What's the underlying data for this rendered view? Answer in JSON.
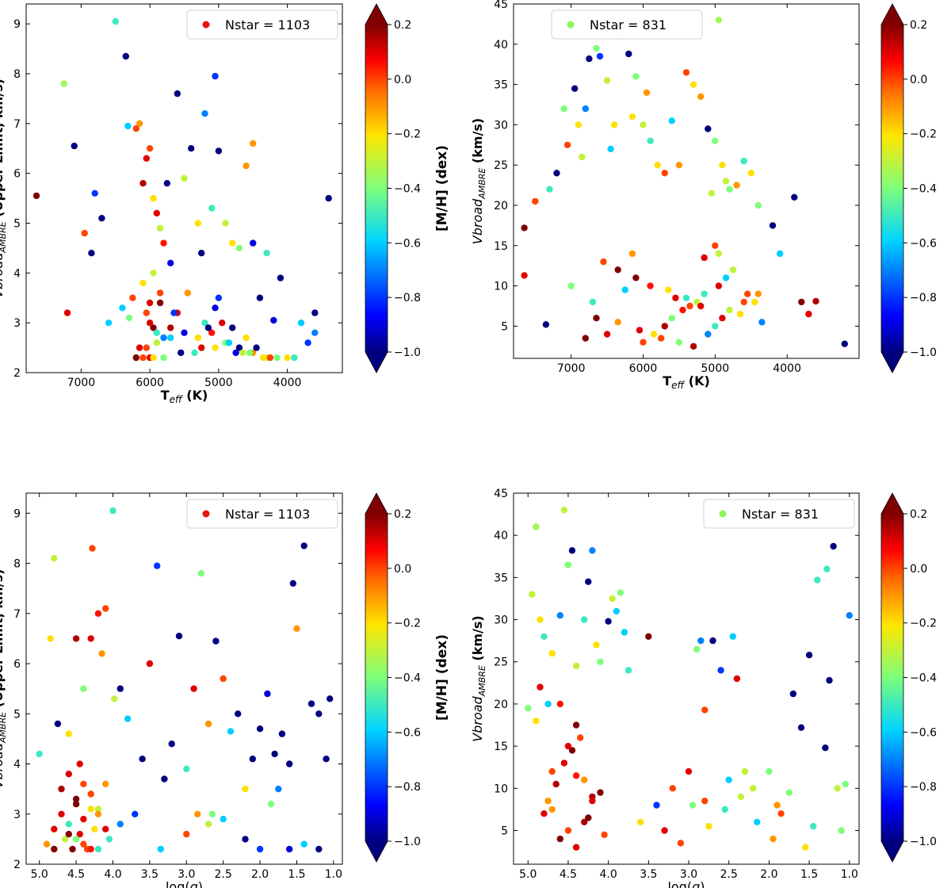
{
  "chart_data": [
    {
      "id": "a",
      "type": "scatter",
      "xlabel_main": "T",
      "xlabel_sub": "eff",
      "xlabel_tail": " (K)",
      "ylabel_main": "Vbroad",
      "ylabel_sub": "AMBRE",
      "ylabel_tail": " (Upper Limit, km/s)",
      "xlim": [
        7800,
        3200
      ],
      "ylim": [
        2.0,
        9.4
      ],
      "xticks": [
        7000,
        6000,
        5000,
        4000
      ],
      "yticks": [
        2,
        3,
        4,
        5,
        6,
        7,
        8,
        9
      ],
      "legend": "Nstar = 1103",
      "legend_color": "#e8140f",
      "colorbar_label": "[M/H] (dex)",
      "colorbar_ticks": [
        "0.2",
        "0.0",
        "−0.2",
        "−0.4",
        "−0.6",
        "−0.8",
        "−1.0"
      ],
      "x": [
        7650,
        7200,
        7100,
        6950,
        6850,
        6800,
        6700,
        6500,
        6350,
        6320,
        6200,
        6150,
        6100,
        6050,
        6000,
        5950,
        5900,
        5850,
        5800,
        5750,
        5700,
        5600,
        5500,
        5400,
        5300,
        5200,
        5100,
        5000,
        4900,
        4800,
        4700,
        4600,
        4500,
        4400,
        4300,
        4200,
        4100,
        3800,
        3700,
        3600,
        3400,
        5050,
        5250,
        6600,
        7250,
        5050,
        4500,
        3600,
        6000,
        6100,
        5950,
        6200,
        5800,
        6150,
        6050,
        5900,
        5700,
        5500,
        5300,
        5100,
        4900,
        4700,
        4500,
        4300,
        4000,
        3900,
        5000,
        5600,
        5200,
        4800,
        4600,
        6300,
        6400,
        6250,
        5850,
        5650,
        5450,
        5150,
        4950,
        4850,
        4650,
        4450,
        4350,
        4150,
        5950,
        6000,
        6050,
        5900,
        5800,
        5700,
        6100,
        6000,
        5950,
        5850,
        5550,
        5350,
        5250,
        5050,
        4750,
        4550,
        4250
      ],
      "y": [
        5.55,
        3.2,
        6.55,
        4.8,
        4.4,
        5.6,
        5.1,
        9.05,
        8.35,
        6.95,
        6.9,
        7.0,
        5.8,
        6.3,
        6.5,
        5.5,
        5.2,
        4.9,
        4.6,
        5.8,
        4.2,
        7.6,
        5.9,
        6.5,
        5.0,
        7.2,
        5.3,
        6.45,
        5.0,
        4.6,
        4.5,
        6.15,
        4.6,
        3.5,
        4.4,
        3.05,
        3.9,
        3.0,
        2.6,
        3.2,
        5.5,
        7.95,
        4.4,
        3.0,
        7.8,
        3.3,
        6.6,
        2.8,
        2.3,
        2.3,
        2.3,
        2.3,
        2.3,
        2.5,
        2.5,
        2.6,
        2.7,
        2.8,
        2.7,
        2.8,
        2.6,
        2.5,
        2.4,
        2.3,
        2.3,
        2.3,
        3.5,
        3.2,
        3.0,
        2.9,
        2.7,
        3.1,
        3.3,
        3.5,
        3.4,
        3.2,
        3.6,
        2.9,
        3.0,
        2.6,
        2.4,
        2.5,
        2.3,
        2.3,
        2.9,
        3.0,
        3.2,
        2.8,
        2.7,
        2.9,
        3.8,
        3.4,
        4.0,
        3.6,
        2.4,
        2.4,
        2.5,
        2.5,
        2.4,
        2.4,
        2.3
      ],
      "c": [
        0.2,
        0.1,
        -1.0,
        0.0,
        -1.0,
        -0.8,
        -1.0,
        -0.5,
        -1.0,
        -0.6,
        0.0,
        -0.1,
        0.15,
        0.1,
        0.0,
        -0.2,
        0.1,
        -0.3,
        0.05,
        -1.0,
        -0.9,
        -1.0,
        -0.3,
        -1.0,
        -0.2,
        -0.7,
        -0.5,
        -1.0,
        -0.3,
        -0.2,
        -0.4,
        -0.1,
        -0.9,
        -1.0,
        -0.5,
        -0.9,
        -1.0,
        -0.6,
        -0.8,
        -1.0,
        -1.0,
        -0.8,
        -1.0,
        -0.6,
        -0.35,
        -0.9,
        -0.1,
        -0.7,
        0.1,
        0.0,
        -0.2,
        0.2,
        -0.4,
        0.1,
        0.0,
        -0.3,
        -0.6,
        -0.9,
        -0.2,
        0.05,
        -0.4,
        -1.0,
        -0.1,
        -0.3,
        -0.2,
        -0.5,
        -0.8,
        0.1,
        -0.5,
        -1.0,
        -0.2,
        -0.4,
        -0.6,
        0.0,
        0.2,
        -0.8,
        -0.1,
        -1.0,
        0.1,
        -0.6,
        -0.3,
        -1.0,
        -0.2,
        -0.4,
        0.2,
        0.1,
        0.0,
        -0.5,
        -0.7,
        0.15,
        -0.2,
        0.1,
        -0.3,
        0.0,
        -1.0,
        -0.5,
        0.1,
        -0.2,
        -0.9,
        -0.4,
        0.0
      ]
    },
    {
      "id": "b",
      "type": "scatter",
      "xlabel_main": "T",
      "xlabel_sub": "eff",
      "xlabel_tail": " (K)",
      "ylabel_main": "Vbroad",
      "ylabel_sub": "AMBRE",
      "ylabel_tail": " (km/s)",
      "xlim": [
        7800,
        3000
      ],
      "ylim": [
        1.0,
        45.0
      ],
      "xticks": [
        7000,
        6000,
        5000,
        4000
      ],
      "yticks": [
        5,
        10,
        15,
        20,
        25,
        30,
        35,
        40,
        45
      ],
      "legend": "Nstar = 831",
      "legend_color": "#8cf55a",
      "colorbar_label": "[M/H] (dex)",
      "colorbar_ticks": [
        "0.2",
        "0.0",
        "−0.2",
        "−0.4",
        "−0.6",
        "−0.8",
        "−1.0"
      ],
      "x": [
        7650,
        7650,
        7500,
        7350,
        7300,
        7200,
        7100,
        7050,
        6950,
        6900,
        6850,
        6800,
        6750,
        6650,
        6600,
        6500,
        6450,
        6400,
        6300,
        6200,
        6150,
        6100,
        6000,
        5950,
        5900,
        5800,
        5700,
        5600,
        5500,
        5400,
        5300,
        5200,
        5100,
        5050,
        5000,
        4950,
        4900,
        4850,
        4800,
        4700,
        4600,
        4500,
        4400,
        4200,
        4100,
        3900,
        3800,
        3700,
        3600,
        3200,
        6550,
        6350,
        6150,
        5150,
        5000,
        4950,
        6250,
        6700,
        7000,
        5550,
        5350,
        4650,
        4350,
        6800,
        6500,
        6000,
        5850,
        5700,
        5600,
        5450,
        5250,
        5150,
        4950,
        4850,
        4750,
        4550,
        4450,
        6650,
        6350,
        6050,
        5750,
        5500,
        5300,
        5100,
        5000,
        4900,
        4800,
        4600,
        4400,
        6100,
        5900,
        5650,
        5400,
        5200
      ],
      "y": [
        17.2,
        11.3,
        20.5,
        5.2,
        22.0,
        24.0,
        32.0,
        27.5,
        34.5,
        30.0,
        26.0,
        32.0,
        38.2,
        39.5,
        38.5,
        35.5,
        27.0,
        30.0,
        41.0,
        38.8,
        31.0,
        36.0,
        30.0,
        34.0,
        28.0,
        25.0,
        24.0,
        30.5,
        25.0,
        36.5,
        35.0,
        33.5,
        29.5,
        21.5,
        28.0,
        43.0,
        25.0,
        23.0,
        22.0,
        22.5,
        25.5,
        24.0,
        20.0,
        17.5,
        14.0,
        21.0,
        8.0,
        6.5,
        8.1,
        2.8,
        13.0,
        12.0,
        14.0,
        13.5,
        15.0,
        14.0,
        9.5,
        8.0,
        10.0,
        8.5,
        7.5,
        6.5,
        5.5,
        3.5,
        4.0,
        3.0,
        4.0,
        5.0,
        6.0,
        7.0,
        8.0,
        9.0,
        10.0,
        11.0,
        12.0,
        9.0,
        8.0,
        6.0,
        5.5,
        4.5,
        3.5,
        3.0,
        2.5,
        4.0,
        5.0,
        6.0,
        7.0,
        8.0,
        9.0,
        11.0,
        10.0,
        9.5,
        8.5,
        7.5
      ],
      "c": [
        0.2,
        0.1,
        0.0,
        -1.0,
        -0.5,
        -1.0,
        -0.4,
        0.0,
        -1.0,
        -0.2,
        -0.3,
        -0.7,
        -1.0,
        -0.4,
        -0.8,
        -0.3,
        -0.6,
        -0.2,
        -0.4,
        -1.0,
        -0.2,
        -0.4,
        -0.3,
        -0.1,
        -0.5,
        -0.2,
        0.0,
        -0.6,
        -0.1,
        0.0,
        -0.2,
        -0.1,
        -1.0,
        -0.3,
        -0.4,
        -0.35,
        -0.2,
        -0.3,
        -0.4,
        -0.1,
        -0.5,
        -0.2,
        -0.4,
        -1.0,
        -0.6,
        -1.0,
        0.2,
        0.1,
        0.15,
        -1.0,
        0.0,
        0.2,
        -0.1,
        0.1,
        0.0,
        -0.3,
        -0.6,
        -0.5,
        -0.4,
        0.1,
        0.0,
        -0.2,
        -0.7,
        0.2,
        0.1,
        0.0,
        -0.2,
        0.15,
        -0.4,
        0.05,
        -0.3,
        -0.5,
        0.1,
        -0.6,
        -0.3,
        0.0,
        -0.2,
        0.2,
        -0.1,
        0.1,
        0.0,
        -0.4,
        0.15,
        -0.7,
        -0.5,
        0.1,
        -0.3,
        0.0,
        -0.1,
        0.2,
        0.05,
        -0.2,
        -0.5,
        0.1
      ]
    },
    {
      "id": "c",
      "type": "scatter",
      "xlabel_main": "log(",
      "xlabel_sub": "",
      "xlabel_tail": "g)",
      "ylabel_main": "Vbroad",
      "ylabel_sub": "AMBRE",
      "ylabel_tail": " (Upper Limit, km/s)",
      "xlim": [
        5.18,
        0.88
      ],
      "ylim": [
        2.0,
        9.4
      ],
      "xticks": [
        5.0,
        4.5,
        4.0,
        3.5,
        3.0,
        2.5,
        2.0,
        1.5,
        1.0
      ],
      "yticks": [
        2,
        3,
        4,
        5,
        6,
        7,
        8,
        9
      ],
      "legend": "Nstar = 1103",
      "legend_color": "#e8140f",
      "colorbar_label": "[M/H] (dex)",
      "colorbar_ticks": [
        "0.2",
        "0.0",
        "−0.2",
        "−0.4",
        "−0.6",
        "−0.8",
        "−1.0"
      ],
      "x": [
        5.0,
        4.85,
        4.8,
        4.75,
        4.6,
        4.5,
        4.45,
        4.4,
        4.3,
        4.28,
        4.2,
        4.15,
        4.1,
        4.0,
        3.98,
        3.9,
        3.8,
        3.6,
        3.5,
        3.4,
        3.3,
        3.2,
        3.1,
        3.0,
        2.9,
        2.8,
        2.7,
        2.6,
        2.5,
        2.4,
        2.3,
        2.2,
        2.1,
        2.0,
        1.9,
        1.85,
        1.8,
        1.7,
        1.6,
        1.55,
        1.5,
        1.4,
        1.3,
        1.2,
        1.1,
        1.05,
        3.35,
        2.85,
        2.65,
        1.75,
        4.55,
        4.35,
        4.65,
        4.45,
        4.25,
        4.05,
        4.7,
        4.5,
        4.3,
        4.1,
        4.6,
        4.4,
        4.2,
        3.9,
        4.8,
        4.9,
        3.7,
        3.0,
        2.7,
        2.5,
        2.2,
        2.0,
        1.6,
        1.4,
        1.2,
        4.6,
        4.4,
        4.5,
        4.3,
        4.7,
        4.2,
        4.1,
        4.4,
        4.5,
        4.6,
        4.3,
        4.2,
        4.8
      ],
      "y": [
        4.2,
        6.5,
        8.1,
        4.8,
        4.6,
        6.5,
        4.0,
        5.5,
        6.5,
        8.3,
        7.0,
        6.2,
        7.1,
        9.05,
        5.3,
        5.5,
        4.9,
        4.1,
        6.0,
        7.95,
        3.7,
        4.4,
        6.55,
        3.9,
        5.5,
        7.8,
        4.8,
        6.45,
        5.7,
        4.65,
        5.0,
        3.5,
        4.1,
        4.7,
        5.4,
        3.2,
        4.2,
        4.6,
        4.0,
        7.6,
        6.7,
        8.35,
        5.2,
        5.0,
        4.1,
        5.3,
        2.3,
        3.0,
        3.0,
        3.5,
        2.3,
        2.3,
        2.5,
        2.6,
        2.7,
        2.5,
        3.0,
        3.2,
        3.4,
        3.6,
        2.8,
        2.9,
        3.1,
        2.8,
        2.3,
        2.4,
        3.0,
        2.6,
        2.8,
        2.9,
        2.5,
        2.3,
        2.3,
        2.4,
        2.3,
        3.8,
        3.6,
        3.3,
        3.1,
        3.5,
        3.0,
        2.7,
        2.4,
        2.5,
        2.6,
        2.3,
        2.3,
        2.7
      ],
      "c": [
        -0.5,
        -0.2,
        -0.3,
        -1.0,
        -0.2,
        0.15,
        0.1,
        -0.4,
        0.1,
        0.0,
        0.05,
        -0.1,
        0.0,
        -0.5,
        -0.3,
        -1.0,
        -0.6,
        -1.0,
        0.1,
        -0.8,
        -1.0,
        -1.0,
        -1.0,
        -0.5,
        0.1,
        -0.4,
        -0.1,
        -1.0,
        0.0,
        -0.6,
        -1.0,
        -0.2,
        -1.0,
        -1.0,
        -0.9,
        -0.4,
        -1.0,
        -1.0,
        -1.0,
        -1.0,
        -0.1,
        -1.0,
        -1.0,
        -1.0,
        -1.0,
        -1.0,
        -0.6,
        -0.1,
        -0.4,
        -0.7,
        0.2,
        0.0,
        -0.3,
        0.1,
        -0.2,
        -0.5,
        0.1,
        0.2,
        0.0,
        -0.1,
        -0.5,
        0.1,
        -0.3,
        -0.7,
        0.2,
        -0.1,
        -0.8,
        0.0,
        -0.3,
        -0.6,
        -1.0,
        -0.8,
        -0.9,
        -0.6,
        -1.0,
        0.1,
        0.0,
        0.2,
        -0.2,
        0.15,
        -0.1,
        0.1,
        0.0,
        -0.4,
        0.2,
        0.05,
        -0.5,
        0.1
      ]
    },
    {
      "id": "d",
      "type": "scatter",
      "xlabel_main": "log(",
      "xlabel_sub": "",
      "xlabel_tail": "g)",
      "ylabel_main": "Vbroad",
      "ylabel_sub": "AMBRE",
      "ylabel_tail": " (km/s)",
      "xlim": [
        5.18,
        0.88
      ],
      "ylim": [
        1.0,
        45.0
      ],
      "xticks": [
        5.0,
        4.5,
        4.0,
        3.5,
        3.0,
        2.5,
        2.0,
        1.5,
        1.0
      ],
      "yticks": [
        5,
        10,
        15,
        20,
        25,
        30,
        35,
        40,
        45
      ],
      "legend": "Nstar = 831",
      "legend_color": "#8cf55a",
      "colorbar_label": "[M/H] (dex)",
      "colorbar_ticks": [
        "0.2",
        "0.0",
        "−0.2",
        "−0.4",
        "−0.6",
        "−0.8",
        "−1.0"
      ],
      "x": [
        5.0,
        4.95,
        4.9,
        4.85,
        4.8,
        4.75,
        4.7,
        4.6,
        4.55,
        4.5,
        4.45,
        4.4,
        4.3,
        4.25,
        4.2,
        4.15,
        4.1,
        4.0,
        3.95,
        3.9,
        3.85,
        3.8,
        3.75,
        3.5,
        3.4,
        3.2,
        3.0,
        2.9,
        2.85,
        2.8,
        2.7,
        2.6,
        2.45,
        2.4,
        2.3,
        2.2,
        2.0,
        1.9,
        1.7,
        1.6,
        1.5,
        1.4,
        1.3,
        1.28,
        1.25,
        1.2,
        1.15,
        1.1,
        1.05,
        1.0,
        4.45,
        4.35,
        4.55,
        4.65,
        4.75,
        4.25,
        4.05,
        4.85,
        4.9,
        4.6,
        4.4,
        4.5,
        4.7,
        4.3,
        4.2,
        4.8,
        3.6,
        3.3,
        3.1,
        2.95,
        2.75,
        2.55,
        2.35,
        2.15,
        1.95,
        1.85,
        1.75,
        1.55,
        1.45,
        4.6,
        4.4,
        4.5,
        4.3,
        4.7,
        4.2,
        4.1,
        4.4,
        2.5,
        2.2,
        2.8
      ],
      "y": [
        19.5,
        33.0,
        41.0,
        30.0,
        28.0,
        20.0,
        26.0,
        30.5,
        43.0,
        36.5,
        38.2,
        24.5,
        30.0,
        34.5,
        38.2,
        27.0,
        25.0,
        29.8,
        32.5,
        31.0,
        33.2,
        28.5,
        24.0,
        28.0,
        8.0,
        10.0,
        12.0,
        26.5,
        27.5,
        19.3,
        27.5,
        24.0,
        28.0,
        23.0,
        12.0,
        10.0,
        12.0,
        8.0,
        21.2,
        17.2,
        25.8,
        34.7,
        14.8,
        36.0,
        22.8,
        38.7,
        10.0,
        5.0,
        10.5,
        30.5,
        14.5,
        16.0,
        13.0,
        10.5,
        8.5,
        6.5,
        4.5,
        22.0,
        18.0,
        20.0,
        17.5,
        15.0,
        12.0,
        11.0,
        9.0,
        7.0,
        6.0,
        5.0,
        3.5,
        8.0,
        5.5,
        7.5,
        9.0,
        6.0,
        4.0,
        7.0,
        9.5,
        3.0,
        5.5,
        4.0,
        3.0,
        5.0,
        6.0,
        7.5,
        8.5,
        9.5,
        11.5,
        11.0,
        10.0,
        8.5
      ],
      "c": [
        -0.4,
        -0.3,
        -0.35,
        -0.2,
        -0.5,
        -0.6,
        -0.2,
        -0.7,
        -0.3,
        -0.4,
        -1.0,
        -0.3,
        -0.5,
        -1.0,
        -0.7,
        -0.2,
        -0.4,
        -1.0,
        -0.3,
        -0.6,
        -0.4,
        -0.6,
        -0.5,
        0.2,
        -0.8,
        0.0,
        0.1,
        -0.4,
        -0.7,
        0.0,
        -1.0,
        -0.8,
        -0.6,
        0.1,
        -0.3,
        -0.2,
        -0.4,
        -0.1,
        -1.0,
        -1.0,
        -1.0,
        -0.5,
        -1.0,
        -0.5,
        -1.0,
        -1.0,
        -0.3,
        -0.4,
        -0.4,
        -0.7,
        0.2,
        0.0,
        0.1,
        0.15,
        -0.1,
        0.2,
        0.0,
        0.1,
        -0.2,
        0.05,
        0.2,
        0.1,
        0.0,
        -0.1,
        0.15,
        0.1,
        -0.2,
        0.1,
        0.0,
        -0.4,
        -0.2,
        -0.5,
        -0.3,
        -0.6,
        -0.1,
        0.0,
        -0.4,
        -0.2,
        -0.5,
        0.2,
        0.1,
        0.0,
        0.15,
        -0.1,
        0.1,
        0.2,
        0.05,
        -0.6,
        -0.3,
        0.0
      ]
    }
  ]
}
